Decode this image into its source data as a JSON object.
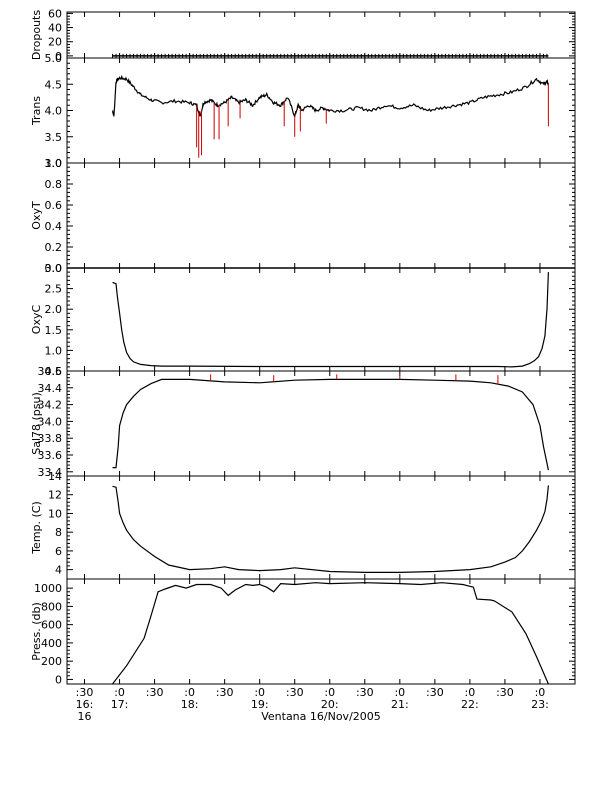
{
  "chart_data": {
    "type": "line",
    "xlabel": "Ventana 16/Nov/2005",
    "x_units": "hours (decimal time of day)",
    "xlim": [
      16.25,
      23.5
    ],
    "x_ticks": [
      16.5,
      17,
      17.5,
      18,
      18.5,
      19,
      19.5,
      20,
      20.5,
      21,
      21.5,
      22,
      22.5,
      23
    ],
    "x_tick_labels": [
      ":30",
      ":0",
      ":30",
      ":0",
      ":30",
      ":0",
      ":30",
      ":0",
      ":30",
      ":0",
      ":30",
      ":0",
      ":30",
      ":0"
    ],
    "x_hour_ticks": [
      16.5,
      17,
      18,
      19,
      20,
      21,
      22,
      23
    ],
    "x_hour_labels": [
      "16:",
      "17:",
      "18:",
      "19:",
      "20:",
      "21:",
      "22:",
      "23:"
    ],
    "x_day_label": "16",
    "panels": [
      {
        "ylabel": "Dropouts",
        "ylim": [
          -3,
          62
        ],
        "yticks": [
          0,
          20,
          40,
          60
        ],
        "ytick_labels": [
          "0",
          "20",
          "40",
          "60"
        ],
        "series": [
          {
            "color": "#000000",
            "style": "markers",
            "x": [
              16.9,
              23.12
            ],
            "y": [
              0,
              0
            ],
            "constant": true
          }
        ]
      },
      {
        "ylabel": "Trans",
        "ylim": [
          3.0,
          5.0
        ],
        "yticks": [
          3.0,
          3.5,
          4.0,
          4.5,
          5.0
        ],
        "ytick_labels": [
          "3.0",
          "3.5",
          "4.0",
          "4.5",
          "5.0"
        ],
        "series": [
          {
            "color": "#000000",
            "x": [
              16.9,
              16.92,
              16.95,
              17.0,
              17.1,
              17.2,
              17.3,
              17.45,
              17.6,
              17.8,
              18.0,
              18.1,
              18.15,
              18.2,
              18.3,
              18.4,
              18.5,
              18.6,
              18.7,
              18.8,
              18.9,
              19.0,
              19.1,
              19.2,
              19.3,
              19.4,
              19.5,
              19.55,
              19.6,
              19.7,
              19.8,
              19.9,
              20.0,
              20.2,
              20.4,
              20.6,
              20.8,
              21.0,
              21.2,
              21.4,
              21.6,
              21.8,
              22.0,
              22.2,
              22.4,
              22.6,
              22.8,
              22.95,
              23.05,
              23.1,
              23.12
            ],
            "y": [
              4.0,
              3.9,
              4.55,
              4.62,
              4.6,
              4.45,
              4.3,
              4.2,
              4.15,
              4.18,
              4.15,
              4.1,
              3.9,
              4.15,
              4.2,
              4.1,
              4.15,
              4.25,
              4.15,
              4.2,
              4.1,
              4.25,
              4.3,
              4.15,
              4.1,
              4.25,
              3.9,
              4.1,
              4.0,
              4.1,
              4.0,
              4.05,
              4.0,
              4.0,
              4.05,
              4.0,
              4.1,
              4.05,
              4.1,
              4.0,
              4.05,
              4.1,
              4.15,
              4.25,
              4.3,
              4.35,
              4.45,
              4.6,
              4.5,
              4.55,
              4.5
            ]
          },
          {
            "color": "#cc0000",
            "style": "spikes",
            "x": [
              18.1,
              18.13,
              18.17,
              18.35,
              18.42,
              18.55,
              18.72,
              19.35,
              19.5,
              19.58,
              19.95,
              23.12
            ],
            "y": [
              3.3,
              3.1,
              3.15,
              3.45,
              3.45,
              3.7,
              3.85,
              3.7,
              3.5,
              3.6,
              3.75,
              3.7
            ]
          }
        ]
      },
      {
        "ylabel": "OxyT",
        "ylim": [
          0.0,
          1.0
        ],
        "yticks": [
          0.0,
          0.2,
          0.4,
          0.6,
          0.8,
          1.0
        ],
        "ytick_labels": [
          "0.0",
          "0.2",
          "0.4",
          "0.6",
          "0.8",
          "1.0"
        ],
        "series": [
          {
            "color": "#000000",
            "x": [
              16.25,
              23.5
            ],
            "y": [
              0.0,
              0.0
            ],
            "constant": true
          }
        ]
      },
      {
        "ylabel": "OxyC",
        "ylim": [
          0.5,
          3.0
        ],
        "yticks": [
          0.5,
          1.0,
          1.5,
          2.0,
          2.5,
          3.0
        ],
        "ytick_labels": [
          "0.5",
          "1.0",
          "1.5",
          "2.0",
          "2.5",
          "3.0"
        ],
        "series": [
          {
            "color": "#000000",
            "x": [
              16.9,
              16.95,
              16.97,
              17.0,
              17.03,
              17.06,
              17.1,
              17.15,
              17.2,
              17.3,
              17.45,
              17.6,
              18.0,
              19.0,
              20.0,
              21.0,
              22.0,
              22.4,
              22.6,
              22.75,
              22.85,
              22.92,
              22.98,
              23.03,
              23.07,
              23.1,
              23.12
            ],
            "y": [
              2.65,
              2.62,
              2.3,
              1.9,
              1.5,
              1.2,
              0.95,
              0.8,
              0.72,
              0.66,
              0.63,
              0.62,
              0.62,
              0.61,
              0.61,
              0.61,
              0.61,
              0.61,
              0.6,
              0.62,
              0.68,
              0.75,
              0.85,
              1.05,
              1.35,
              2.0,
              2.9
            ]
          }
        ]
      },
      {
        "ylabel": "Sal78 (psu)",
        "ylim": [
          33.35,
          34.6
        ],
        "yticks": [
          33.4,
          33.6,
          33.8,
          34.0,
          34.2,
          34.4,
          34.6
        ],
        "ytick_labels": [
          "33.4",
          "33.6",
          "33.8",
          "34.0",
          "34.2",
          "34.4",
          "34.6"
        ],
        "series": [
          {
            "color": "#000000",
            "x": [
              16.9,
              16.95,
              16.98,
              17.0,
              17.05,
              17.1,
              17.2,
              17.3,
              17.45,
              17.6,
              17.8,
              18.0,
              18.5,
              19.0,
              19.5,
              20.0,
              20.5,
              21.0,
              21.5,
              22.0,
              22.3,
              22.55,
              22.75,
              22.9,
              23.0,
              23.05,
              23.1,
              23.12
            ],
            "y": [
              33.45,
              33.45,
              33.7,
              33.95,
              34.1,
              34.2,
              34.3,
              34.38,
              34.45,
              34.5,
              34.5,
              34.5,
              34.47,
              34.46,
              34.49,
              34.5,
              34.5,
              34.5,
              34.49,
              34.48,
              34.46,
              34.42,
              34.35,
              34.2,
              33.95,
              33.7,
              33.5,
              33.42
            ]
          },
          {
            "color": "#cc0000",
            "style": "spikes",
            "x": [
              18.3,
              19.2,
              20.1,
              21.0,
              21.8,
              22.4
            ],
            "y": [
              34.56,
              34.55,
              34.56,
              34.55,
              34.56,
              34.55
            ]
          }
        ]
      },
      {
        "ylabel": "Temp. (C)",
        "ylim": [
          3.0,
          14.0
        ],
        "yticks": [
          4,
          6,
          8,
          10,
          12,
          14
        ],
        "ytick_labels": [
          "4",
          "6",
          "8",
          "10",
          "12",
          "14"
        ],
        "series": [
          {
            "color": "#000000",
            "x": [
              16.9,
              16.95,
              16.98,
              17.0,
              17.05,
              17.1,
              17.2,
              17.3,
              17.5,
              17.7,
              18.0,
              18.3,
              18.5,
              18.7,
              19.0,
              19.3,
              19.5,
              20.0,
              20.5,
              21.0,
              21.5,
              22.0,
              22.3,
              22.5,
              22.65,
              22.75,
              22.85,
              22.95,
              23.02,
              23.07,
              23.1,
              23.12
            ],
            "y": [
              12.9,
              12.8,
              11.2,
              10.0,
              9.0,
              8.2,
              7.2,
              6.5,
              5.4,
              4.5,
              4.0,
              4.1,
              4.3,
              4.0,
              3.9,
              4.0,
              4.2,
              3.8,
              3.7,
              3.7,
              3.8,
              4.0,
              4.3,
              4.8,
              5.3,
              6.0,
              7.0,
              8.2,
              9.2,
              10.2,
              11.5,
              13.0
            ]
          }
        ]
      },
      {
        "ylabel": "Press. (db)",
        "ylim": [
          -50,
          1100
        ],
        "yticks": [
          0,
          200,
          400,
          600,
          800,
          1000
        ],
        "ytick_labels": [
          "0",
          "200",
          "400",
          "600",
          "800",
          "1000"
        ],
        "series": [
          {
            "color": "#000000",
            "x": [
              16.9,
              17.1,
              17.35,
              17.45,
              17.55,
              17.65,
              17.8,
              17.95,
              18.1,
              18.3,
              18.45,
              18.55,
              18.65,
              18.8,
              18.9,
              19.0,
              19.1,
              19.2,
              19.3,
              19.5,
              19.8,
              20.0,
              20.5,
              21.0,
              21.3,
              21.6,
              21.9,
              22.05,
              22.1,
              22.3,
              22.35,
              22.6,
              22.8,
              22.95,
              23.12
            ],
            "y": [
              -50,
              150,
              450,
              700,
              960,
              990,
              1030,
              1000,
              1040,
              1040,
              1000,
              920,
              980,
              1040,
              1030,
              1040,
              1010,
              960,
              1050,
              1040,
              1060,
              1050,
              1060,
              1050,
              1040,
              1060,
              1040,
              1010,
              880,
              870,
              860,
              740,
              500,
              250,
              -50
            ]
          }
        ]
      }
    ]
  }
}
